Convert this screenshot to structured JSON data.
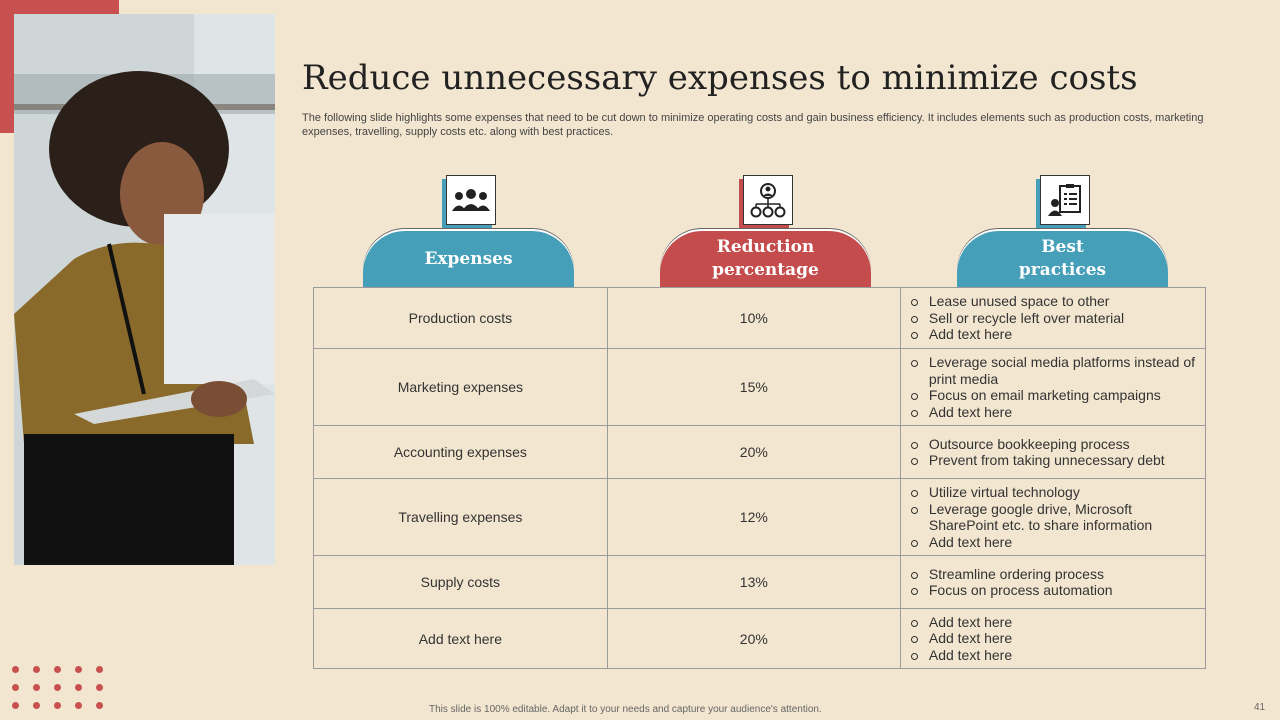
{
  "slide": {
    "title": "Reduce unnecessary expenses to minimize costs",
    "subtitle": "The following slide highlights some expenses that need to be cut down to minimize operating costs and gain business efficiency. It includes elements such as production costs, marketing expenses, travelling, supply costs etc. along with best practices.",
    "footer_note": "This slide is 100% editable.  Adapt it to your needs and capture your audience's attention.",
    "page_number": "41"
  },
  "columns": [
    {
      "header": "Expenses",
      "icon": "people-group-icon",
      "color": "#459fb8"
    },
    {
      "header": "Reduction percentage",
      "icon": "hierarchy-icon",
      "color": "#c44c4c"
    },
    {
      "header": "Best practices",
      "icon": "clipboard-person-icon",
      "color": "#459fb8"
    }
  ],
  "rows": [
    {
      "expense": "Production costs",
      "reduction": "10%",
      "practices": [
        "Lease unused space to other",
        "Sell or recycle left over material",
        "Add text here"
      ]
    },
    {
      "expense": "Marketing expenses",
      "reduction": "15%",
      "practices": [
        "Leverage social media platforms instead of print media",
        "Focus on email marketing campaigns",
        "Add text here"
      ]
    },
    {
      "expense": "Accounting expenses",
      "reduction": "20%",
      "practices": [
        "Outsource bookkeeping process",
        "Prevent from taking unnecessary debt"
      ]
    },
    {
      "expense": "Travelling expenses",
      "reduction": "12%",
      "practices": [
        "Utilize  virtual technology",
        "Leverage google drive, Microsoft SharePoint etc. to share information",
        "Add text here"
      ]
    },
    {
      "expense": "Supply costs",
      "reduction": "13%",
      "practices": [
        "Streamline ordering process",
        "Focus on process automation"
      ]
    },
    {
      "expense": "Add text here",
      "reduction": "20%",
      "practices": [
        "Add text here",
        "Add text here",
        "Add text here"
      ]
    }
  ],
  "colors": {
    "background": "#f2e6d0",
    "accent_red": "#c8514f",
    "accent_blue": "#459fb8"
  }
}
